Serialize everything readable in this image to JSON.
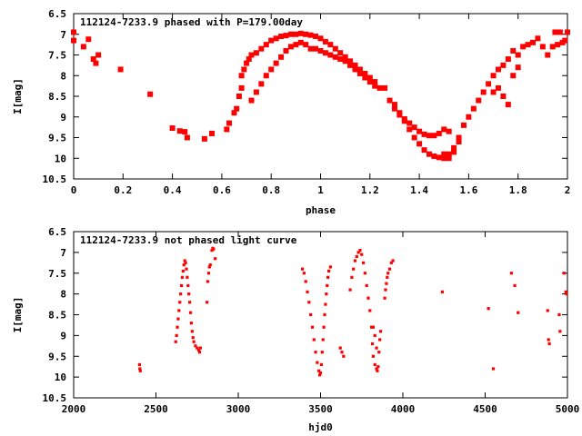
{
  "chart_data": [
    {
      "type": "scatter",
      "title": "112124-7233.9 phased with P=179.00day",
      "xlabel": "phase",
      "ylabel": "I[mag]",
      "xlim": [
        0,
        2
      ],
      "ylim": [
        10.5,
        6.5
      ],
      "y_reversed": true,
      "xticks": [
        0,
        0.2,
        0.4,
        0.6,
        0.8,
        1,
        1.2,
        1.4,
        1.6,
        1.8,
        2
      ],
      "xtick_labels": [
        "0",
        "0.2",
        "0.4",
        "0.6",
        "0.8",
        "1",
        "1.2",
        "1.4",
        "1.6",
        "1.8",
        "2"
      ],
      "yticks": [
        6.5,
        7,
        7.5,
        8,
        8.5,
        9,
        9.5,
        10,
        10.5
      ],
      "ytick_labels": [
        "6.5",
        "7",
        "7.5",
        "8",
        "8.5",
        "9",
        "9.5",
        "10",
        "10.5"
      ],
      "grid": false,
      "marker_color": "#ff0000",
      "points": [
        [
          0.0,
          6.95
        ],
        [
          0.0,
          7.15
        ],
        [
          0.04,
          7.3
        ],
        [
          0.06,
          7.12
        ],
        [
          0.08,
          7.6
        ],
        [
          0.09,
          7.7
        ],
        [
          0.1,
          7.5
        ],
        [
          0.19,
          7.85
        ],
        [
          0.31,
          8.45
        ],
        [
          0.4,
          9.27
        ],
        [
          0.43,
          9.34
        ],
        [
          0.45,
          9.36
        ],
        [
          0.46,
          9.5
        ],
        [
          0.53,
          9.53
        ],
        [
          0.56,
          9.4
        ],
        [
          0.62,
          9.3
        ],
        [
          0.63,
          9.15
        ],
        [
          0.65,
          8.9
        ],
        [
          0.66,
          8.8
        ],
        [
          0.67,
          8.5
        ],
        [
          0.68,
          8.3
        ],
        [
          0.68,
          8.0
        ],
        [
          0.69,
          7.85
        ],
        [
          0.7,
          7.7
        ],
        [
          0.71,
          7.6
        ],
        [
          0.72,
          7.5
        ],
        [
          0.74,
          7.45
        ],
        [
          0.72,
          8.6
        ],
        [
          0.74,
          8.4
        ],
        [
          0.76,
          8.2
        ],
        [
          0.78,
          8.0
        ],
        [
          0.8,
          7.85
        ],
        [
          0.82,
          7.7
        ],
        [
          0.84,
          7.55
        ],
        [
          0.86,
          7.4
        ],
        [
          0.88,
          7.3
        ],
        [
          0.9,
          7.25
        ],
        [
          0.92,
          7.2
        ],
        [
          0.94,
          7.25
        ],
        [
          0.76,
          7.35
        ],
        [
          0.78,
          7.25
        ],
        [
          0.8,
          7.15
        ],
        [
          0.82,
          7.1
        ],
        [
          0.84,
          7.05
        ],
        [
          0.86,
          7.03
        ],
        [
          0.88,
          7.0
        ],
        [
          0.9,
          7.0
        ],
        [
          0.92,
          6.98
        ],
        [
          0.94,
          7.0
        ],
        [
          0.96,
          7.02
        ],
        [
          0.98,
          7.05
        ],
        [
          1.0,
          7.1
        ],
        [
          1.02,
          7.18
        ],
        [
          1.04,
          7.25
        ],
        [
          1.06,
          7.35
        ],
        [
          1.08,
          7.45
        ],
        [
          1.1,
          7.55
        ],
        [
          1.12,
          7.65
        ],
        [
          1.14,
          7.75
        ],
        [
          1.16,
          7.85
        ],
        [
          1.18,
          7.95
        ],
        [
          1.2,
          8.05
        ],
        [
          1.22,
          8.15
        ],
        [
          0.96,
          7.35
        ],
        [
          0.98,
          7.35
        ],
        [
          1.0,
          7.4
        ],
        [
          1.02,
          7.45
        ],
        [
          1.04,
          7.5
        ],
        [
          1.06,
          7.55
        ],
        [
          1.08,
          7.6
        ],
        [
          1.1,
          7.65
        ],
        [
          1.12,
          7.75
        ],
        [
          1.14,
          7.85
        ],
        [
          1.16,
          7.95
        ],
        [
          1.18,
          8.05
        ],
        [
          1.2,
          8.15
        ],
        [
          1.22,
          8.25
        ],
        [
          1.24,
          8.3
        ],
        [
          1.26,
          8.3
        ],
        [
          1.28,
          8.6
        ],
        [
          1.3,
          8.8
        ],
        [
          1.32,
          8.95
        ],
        [
          1.34,
          9.1
        ],
        [
          1.36,
          9.3
        ],
        [
          1.38,
          9.5
        ],
        [
          1.4,
          9.65
        ],
        [
          1.42,
          9.8
        ],
        [
          1.44,
          9.9
        ],
        [
          1.46,
          9.95
        ],
        [
          1.48,
          9.98
        ],
        [
          1.5,
          10.0
        ],
        [
          1.52,
          9.9
        ],
        [
          1.54,
          9.75
        ],
        [
          1.56,
          9.6
        ],
        [
          1.3,
          8.7
        ],
        [
          1.32,
          8.9
        ],
        [
          1.34,
          9.05
        ],
        [
          1.36,
          9.15
        ],
        [
          1.38,
          9.25
        ],
        [
          1.4,
          9.35
        ],
        [
          1.42,
          9.42
        ],
        [
          1.44,
          9.45
        ],
        [
          1.46,
          9.45
        ],
        [
          1.48,
          9.4
        ],
        [
          1.5,
          9.3
        ],
        [
          1.52,
          9.35
        ],
        [
          1.5,
          9.9
        ],
        [
          1.52,
          10.0
        ],
        [
          1.54,
          9.85
        ],
        [
          1.56,
          9.5
        ],
        [
          1.58,
          9.2
        ],
        [
          1.6,
          9.0
        ],
        [
          1.62,
          8.8
        ],
        [
          1.64,
          8.6
        ],
        [
          1.66,
          8.4
        ],
        [
          1.68,
          8.2
        ],
        [
          1.7,
          8.0
        ],
        [
          1.72,
          7.85
        ],
        [
          1.74,
          7.75
        ],
        [
          1.7,
          8.4
        ],
        [
          1.72,
          8.3
        ],
        [
          1.74,
          8.5
        ],
        [
          1.76,
          8.7
        ],
        [
          1.78,
          8.0
        ],
        [
          1.8,
          7.8
        ],
        [
          1.76,
          7.6
        ],
        [
          1.78,
          7.4
        ],
        [
          1.8,
          7.5
        ],
        [
          1.82,
          7.3
        ],
        [
          1.84,
          7.25
        ],
        [
          1.86,
          7.2
        ],
        [
          1.88,
          7.1
        ],
        [
          1.9,
          7.3
        ],
        [
          1.92,
          7.5
        ],
        [
          1.94,
          7.3
        ],
        [
          1.96,
          7.25
        ],
        [
          1.98,
          7.2
        ],
        [
          1.95,
          6.95
        ],
        [
          1.97,
          6.95
        ],
        [
          2.0,
          6.95
        ],
        [
          1.99,
          7.15
        ]
      ]
    },
    {
      "type": "scatter",
      "title": "112124-7233.9 not phased light curve",
      "xlabel": "hjd0",
      "ylabel": "I[mag]",
      "xlim": [
        2000,
        5000
      ],
      "ylim": [
        10.5,
        6.5
      ],
      "y_reversed": true,
      "xticks": [
        2000,
        2500,
        3000,
        3500,
        4000,
        4500,
        5000
      ],
      "xtick_labels": [
        "2000",
        "2500",
        "3000",
        "3500",
        "4000",
        "4500",
        "5000"
      ],
      "yticks": [
        6.5,
        7,
        7.5,
        8,
        8.5,
        9,
        9.5,
        10,
        10.5
      ],
      "ytick_labels": [
        "6.5",
        "7",
        "7.5",
        "8",
        "8.5",
        "9",
        "9.5",
        "10",
        "10.5"
      ],
      "grid": false,
      "marker_color": "#ff0000",
      "points": [
        [
          2400,
          9.7
        ],
        [
          2402,
          9.8
        ],
        [
          2405,
          9.85
        ],
        [
          2620,
          9.15
        ],
        [
          2625,
          9.0
        ],
        [
          2630,
          8.8
        ],
        [
          2635,
          8.6
        ],
        [
          2640,
          8.4
        ],
        [
          2645,
          8.2
        ],
        [
          2650,
          8.0
        ],
        [
          2655,
          7.8
        ],
        [
          2660,
          7.6
        ],
        [
          2665,
          7.45
        ],
        [
          2670,
          7.3
        ],
        [
          2675,
          7.2
        ],
        [
          2680,
          7.25
        ],
        [
          2685,
          7.4
        ],
        [
          2690,
          7.6
        ],
        [
          2695,
          7.8
        ],
        [
          2700,
          8.0
        ],
        [
          2705,
          8.2
        ],
        [
          2710,
          8.45
        ],
        [
          2715,
          8.7
        ],
        [
          2720,
          8.9
        ],
        [
          2725,
          9.05
        ],
        [
          2730,
          9.15
        ],
        [
          2740,
          9.25
        ],
        [
          2750,
          9.3
        ],
        [
          2760,
          9.35
        ],
        [
          2765,
          9.4
        ],
        [
          2770,
          9.3
        ],
        [
          2810,
          8.2
        ],
        [
          2815,
          7.7
        ],
        [
          2820,
          7.5
        ],
        [
          2825,
          7.35
        ],
        [
          2830,
          7.3
        ],
        [
          2840,
          6.95
        ],
        [
          2845,
          6.9
        ],
        [
          2850,
          6.92
        ],
        [
          2860,
          7.15
        ],
        [
          3390,
          7.4
        ],
        [
          3400,
          7.5
        ],
        [
          3410,
          7.7
        ],
        [
          3420,
          7.95
        ],
        [
          3430,
          8.2
        ],
        [
          3440,
          8.5
        ],
        [
          3450,
          8.8
        ],
        [
          3460,
          9.1
        ],
        [
          3470,
          9.4
        ],
        [
          3480,
          9.65
        ],
        [
          3490,
          9.85
        ],
        [
          3495,
          9.95
        ],
        [
          3500,
          9.9
        ],
        [
          3505,
          9.7
        ],
        [
          3510,
          9.4
        ],
        [
          3515,
          9.1
        ],
        [
          3520,
          8.8
        ],
        [
          3525,
          8.5
        ],
        [
          3530,
          8.25
        ],
        [
          3535,
          8.0
        ],
        [
          3540,
          7.8
        ],
        [
          3545,
          7.6
        ],
        [
          3550,
          7.45
        ],
        [
          3560,
          7.35
        ],
        [
          3620,
          9.3
        ],
        [
          3630,
          9.4
        ],
        [
          3640,
          9.5
        ],
        [
          3680,
          7.9
        ],
        [
          3690,
          7.6
        ],
        [
          3700,
          7.4
        ],
        [
          3710,
          7.2
        ],
        [
          3720,
          7.1
        ],
        [
          3730,
          7.0
        ],
        [
          3740,
          6.95
        ],
        [
          3750,
          7.05
        ],
        [
          3760,
          7.25
        ],
        [
          3770,
          7.5
        ],
        [
          3780,
          7.8
        ],
        [
          3790,
          8.1
        ],
        [
          3800,
          8.4
        ],
        [
          3810,
          8.8
        ],
        [
          3815,
          9.2
        ],
        [
          3820,
          9.5
        ],
        [
          3830,
          9.7
        ],
        [
          3840,
          9.8
        ],
        [
          3845,
          9.85
        ],
        [
          3850,
          9.75
        ],
        [
          3855,
          9.4
        ],
        [
          3860,
          9.1
        ],
        [
          3865,
          8.9
        ],
        [
          3820,
          8.8
        ],
        [
          3830,
          9.0
        ],
        [
          3840,
          9.3
        ],
        [
          3890,
          8.1
        ],
        [
          3895,
          7.9
        ],
        [
          3900,
          7.75
        ],
        [
          3905,
          7.6
        ],
        [
          3910,
          7.5
        ],
        [
          3920,
          7.4
        ],
        [
          3930,
          7.25
        ],
        [
          3940,
          7.2
        ],
        [
          4240,
          7.95
        ],
        [
          4520,
          8.35
        ],
        [
          4550,
          9.8
        ],
        [
          4660,
          7.5
        ],
        [
          4680,
          7.8
        ],
        [
          4700,
          8.45
        ],
        [
          4880,
          8.4
        ],
        [
          4885,
          9.1
        ],
        [
          4890,
          9.2
        ],
        [
          4950,
          8.5
        ],
        [
          4955,
          8.9
        ],
        [
          4980,
          7.5
        ],
        [
          4990,
          7.95
        ],
        [
          4995,
          8.0
        ]
      ]
    }
  ]
}
